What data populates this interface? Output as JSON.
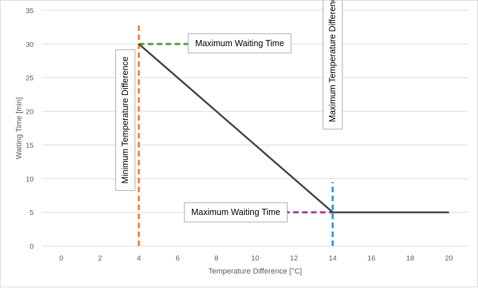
{
  "chart_data": {
    "type": "line",
    "title": "",
    "xlabel": "Temperature Difference [°C]",
    "ylabel": "Waiting Time [min]",
    "xlim": [
      -1,
      21
    ],
    "ylim": [
      0,
      35
    ],
    "x_ticks": [
      0,
      2,
      4,
      6,
      8,
      10,
      12,
      14,
      16,
      18,
      20
    ],
    "y_ticks": [
      0,
      5,
      10,
      15,
      20,
      25,
      30,
      35
    ],
    "grid": "horizontal",
    "legend": "none",
    "series": [
      {
        "color": "#404040",
        "points": [
          [
            4,
            30
          ],
          [
            14,
            5
          ],
          [
            20,
            5
          ]
        ]
      }
    ],
    "reference_lines": [
      {
        "orientation": "vertical",
        "x": 4,
        "y_range": [
          0,
          33
        ],
        "color": "#ED7D31",
        "style": "dashed"
      },
      {
        "orientation": "vertical",
        "x": 14,
        "y_range": [
          0,
          9.5
        ],
        "color": "#1F9BD6",
        "style": "dashed"
      },
      {
        "orientation": "horizontal",
        "y": 30,
        "x_range": [
          4,
          7
        ],
        "color": "#4E9A2A",
        "style": "dashed"
      },
      {
        "orientation": "horizontal",
        "y": 5,
        "x_range": [
          11.5,
          14
        ],
        "color": "#A0309A",
        "style": "dashed"
      }
    ],
    "annotations": [
      {
        "text": "Maximum Waiting Time",
        "orientation": "horizontal",
        "x": 9.2,
        "y": 30.1
      },
      {
        "text": "Minimum Temperature Difference",
        "orientation": "vertical",
        "x": 3.3,
        "y": 18.7
      },
      {
        "text": "Maximum Temperature Difference",
        "orientation": "vertical",
        "x": 14.0,
        "y": 28.0
      },
      {
        "text": "Maximum Waiting Time",
        "orientation": "horizontal",
        "x": 9.0,
        "y": 5.0
      }
    ]
  },
  "colors": {
    "gridline": "#d9d9d9",
    "axis_text": "#595959",
    "annotation_border": "#a6a6a6"
  }
}
